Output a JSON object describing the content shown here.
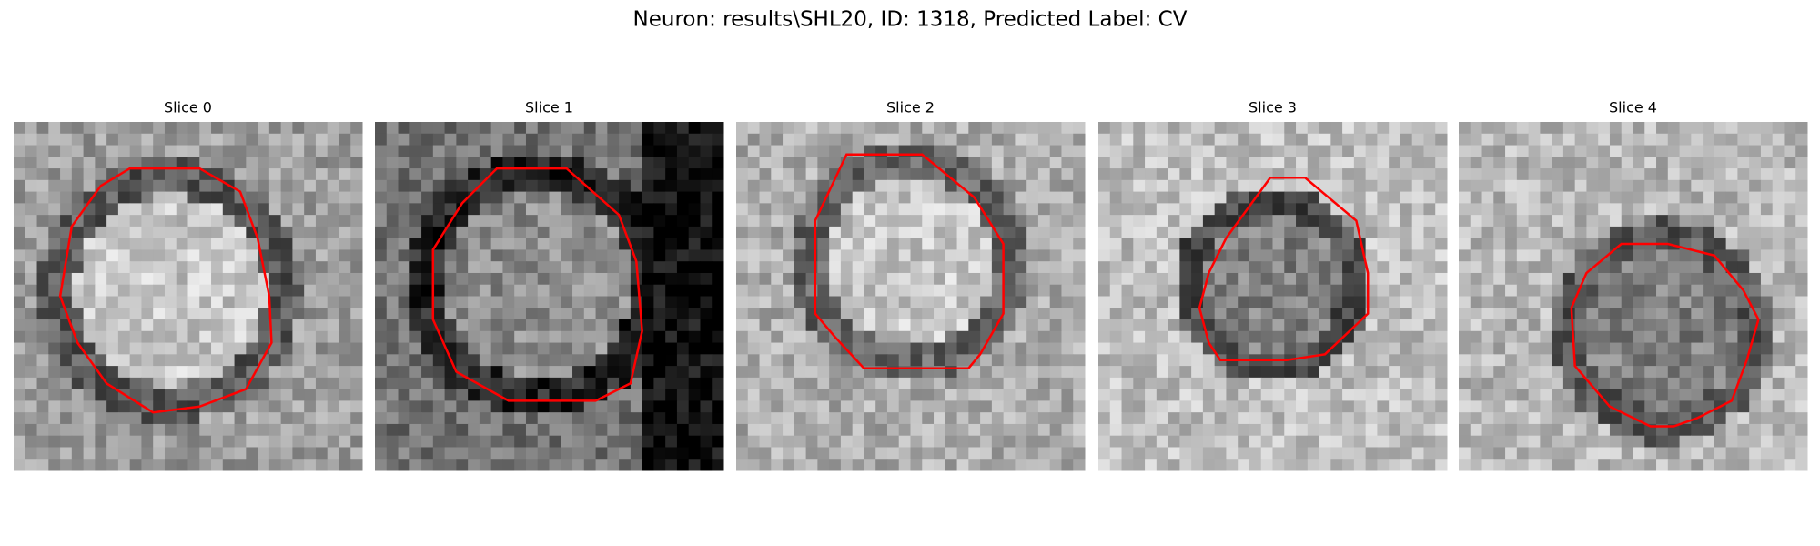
{
  "title": "Neuron: results\\SHL20, ID: 1318, Predicted Label: CV",
  "panels": [
    {
      "title": "Slice 0"
    },
    {
      "title": "Slice 1"
    },
    {
      "title": "Slice 2"
    },
    {
      "title": "Slice 3"
    },
    {
      "title": "Slice 4"
    }
  ]
}
